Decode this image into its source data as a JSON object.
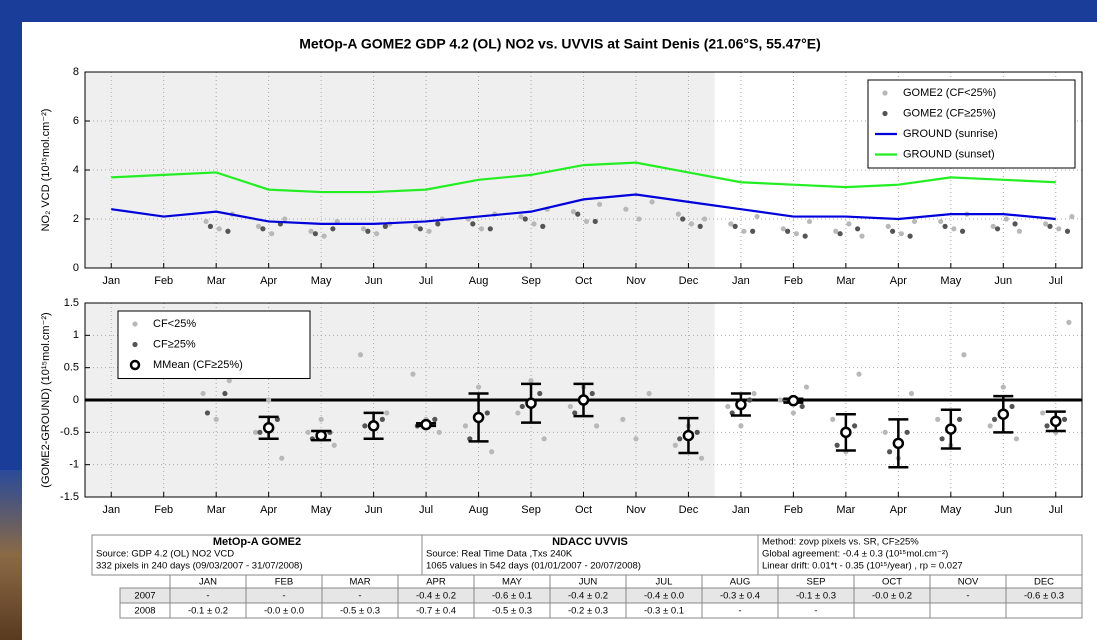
{
  "title": "MetOp-A GOME2  GDP 4.2 (OL) NO2 vs.  UVVIS at Saint Denis (21.06°S,  55.47°E)",
  "chart_data": [
    {
      "type": "line",
      "ylabel": "NO₂ VCD (10¹⁵mol.cm⁻²)",
      "categories": [
        "Jan",
        "Feb",
        "Mar",
        "Apr",
        "May",
        "Jun",
        "Jul",
        "Aug",
        "Sep",
        "Oct",
        "Nov",
        "Dec",
        "Jan",
        "Feb",
        "Mar",
        "Apr",
        "May",
        "Jun",
        "Jul"
      ],
      "ylim": [
        0,
        8
      ],
      "yticks": [
        0,
        2,
        4,
        6,
        8
      ],
      "grid": true,
      "legend": "upper right",
      "series": [
        {
          "name": "GOME2 (CF<25%)",
          "type": "scatter",
          "color": "#b8b8b8",
          "values": [
            null,
            null,
            [
              1.9,
              1.6,
              2.2
            ],
            [
              1.7,
              1.4,
              2.0
            ],
            [
              1.5,
              1.3,
              1.9
            ],
            [
              1.6,
              1.4,
              1.8
            ],
            [
              1.7,
              1.5,
              2.0
            ],
            [
              2.0,
              1.6,
              2.2
            ],
            [
              2.1,
              1.8,
              2.4
            ],
            [
              2.3,
              1.9,
              2.6
            ],
            [
              2.4,
              2.0,
              2.7
            ],
            [
              2.2,
              1.8,
              2.0
            ],
            [
              1.8,
              1.5,
              2.1
            ],
            [
              1.6,
              1.4,
              1.9
            ],
            [
              1.5,
              1.8,
              1.3
            ],
            [
              1.7,
              1.4,
              1.9
            ],
            [
              1.9,
              1.6,
              2.2
            ],
            [
              1.7,
              2.0,
              1.5
            ],
            [
              1.8,
              1.6,
              2.1
            ]
          ]
        },
        {
          "name": "GOME2 (CF≥25%)",
          "type": "scatter",
          "color": "#555555",
          "values": [
            null,
            null,
            [
              1.7,
              1.5
            ],
            [
              1.6,
              1.8
            ],
            [
              1.4,
              1.6
            ],
            [
              1.5,
              1.7
            ],
            [
              1.6,
              1.8
            ],
            [
              1.8,
              1.6
            ],
            [
              2.0,
              1.7
            ],
            [
              2.2,
              1.9
            ],
            null,
            [
              2.0,
              1.7
            ],
            [
              1.7,
              1.5
            ],
            [
              1.5,
              1.3
            ],
            [
              1.4,
              1.6
            ],
            [
              1.5,
              1.3
            ],
            [
              1.7,
              1.5
            ],
            [
              1.6,
              1.8
            ],
            [
              1.7,
              1.5
            ]
          ]
        },
        {
          "name": "GROUND (sunrise)",
          "type": "line",
          "color": "#0000dd",
          "values": [
            2.4,
            2.1,
            2.3,
            1.9,
            1.8,
            1.8,
            1.9,
            2.1,
            2.3,
            2.8,
            3.0,
            2.7,
            2.4,
            2.1,
            2.1,
            2.0,
            2.2,
            2.2,
            2.0
          ]
        },
        {
          "name": "GROUND (sunset)",
          "type": "line",
          "color": "#22ee22",
          "values": [
            3.7,
            3.8,
            3.9,
            3.2,
            3.1,
            3.1,
            3.2,
            3.6,
            3.8,
            4.2,
            4.3,
            3.9,
            3.5,
            3.4,
            3.3,
            3.4,
            3.7,
            3.6,
            3.5
          ]
        }
      ]
    },
    {
      "type": "errorbar",
      "ylabel": "(GOME2-GROUND) (10¹⁵mol.cm⁻²)",
      "categories": [
        "Jan",
        "Feb",
        "Mar",
        "Apr",
        "May",
        "Jun",
        "Jul",
        "Aug",
        "Sep",
        "Oct",
        "Nov",
        "Dec",
        "Jan",
        "Feb",
        "Mar",
        "Apr",
        "May",
        "Jun",
        "Jul"
      ],
      "ylim": [
        -1.5,
        1.5
      ],
      "yticks": [
        -1.5,
        -1,
        -0.5,
        0,
        0.5,
        1,
        1.5
      ],
      "grid": true,
      "legend": "upper left",
      "series": [
        {
          "name": "CF<25%",
          "type": "scatter",
          "color": "#b8b8b8",
          "values": [
            null,
            null,
            [
              0.1,
              -0.3,
              0.3
            ],
            [
              -0.5,
              0.0,
              -0.9
            ],
            [
              -0.5,
              -0.3,
              -0.7
            ],
            [
              0.7,
              -0.4,
              -0.2
            ],
            [
              0.4,
              -0.3,
              -0.5
            ],
            [
              -0.4,
              0.2,
              -0.8
            ],
            [
              -0.2,
              0.3,
              -0.6
            ],
            [
              -0.1,
              0.2,
              -0.4
            ],
            [
              -0.3,
              -0.6,
              0.1
            ],
            [
              -0.7,
              -0.4,
              -0.9
            ],
            [
              -0.1,
              -0.4,
              0.1
            ],
            [
              0.0,
              -0.2,
              0.2
            ],
            [
              -0.3,
              -0.8,
              0.4
            ],
            [
              -0.5,
              -0.9,
              0.1
            ],
            [
              -0.3,
              -0.7,
              0.7
            ],
            [
              -0.4,
              0.2,
              -0.6
            ],
            [
              -0.2,
              -0.5,
              1.2
            ]
          ]
        },
        {
          "name": "CF≥25%",
          "type": "scatter",
          "color": "#555555",
          "values": [
            null,
            null,
            [
              -0.2,
              0.1
            ],
            [
              -0.5,
              -0.3
            ],
            [
              -0.6,
              -0.5
            ],
            [
              -0.4,
              -0.3
            ],
            [
              -0.4,
              -0.3
            ],
            [
              -0.6,
              -0.2
            ],
            [
              -0.1,
              0.1
            ],
            [
              -0.2,
              0.1
            ],
            null,
            [
              -0.6,
              -0.5
            ],
            [
              -0.2,
              0.0
            ],
            [
              0.0,
              -0.1
            ],
            [
              -0.7,
              -0.4
            ],
            [
              -0.8,
              -0.5
            ],
            [
              -0.6,
              -0.3
            ],
            [
              -0.3,
              -0.1
            ],
            [
              -0.4,
              -0.3
            ]
          ]
        },
        {
          "name": "MMean (CF≥25%)",
          "type": "errorbar",
          "color": "#000000",
          "values": [
            null,
            null,
            null,
            -0.43,
            -0.55,
            -0.4,
            -0.38,
            -0.27,
            -0.05,
            0.0,
            null,
            -0.55,
            -0.07,
            -0.01,
            -0.5,
            -0.67,
            -0.45,
            -0.22,
            -0.33
          ],
          "errors": [
            null,
            null,
            null,
            0.17,
            0.07,
            0.2,
            0.02,
            0.37,
            0.3,
            0.25,
            null,
            0.27,
            0.17,
            0.03,
            0.28,
            0.37,
            0.3,
            0.28,
            0.15
          ]
        }
      ]
    }
  ],
  "table": {
    "groups": [
      {
        "title": "MetOp-A GOME2",
        "lines": [
          "Source: GDP 4.2 (OL) NO2 VCD",
          "332 pixels in 240 days (09/03/2007 - 31/07/2008)"
        ]
      },
      {
        "title": "NDACC UVVIS",
        "lines": [
          "Source: Real Time Data ,Txs 240K",
          "1065 values in 542 days (01/01/2007 - 20/07/2008)"
        ]
      },
      {
        "title": null,
        "lines": [
          "Method: zovp pixels vs. SR, CF≥25%",
          "Global agreement: -0.4 ± 0.3 (10¹⁵mol.cm⁻²)",
          "Linear drift: 0.01*t - 0.35 (10¹⁵/year) , rp = 0.027"
        ]
      }
    ],
    "months": [
      "JAN",
      "FEB",
      "MAR",
      "APR",
      "MAY",
      "JUN",
      "JUL",
      "AUG",
      "SEP",
      "OCT",
      "NOV",
      "DEC"
    ],
    "rows": [
      {
        "year": "2007",
        "cells": [
          "-",
          "-",
          "-",
          "-0.4 ± 0.2",
          "-0.6 ± 0.1",
          "-0.4 ± 0.2",
          "-0.4 ± 0.0",
          "-0.3 ± 0.4",
          "-0.1 ± 0.3",
          "-0.0 ± 0.2",
          "-",
          "-0.6 ± 0.3"
        ]
      },
      {
        "year": "2008",
        "cells": [
          "-0.1 ± 0.2",
          "-0.0 ± 0.0",
          "-0.5 ± 0.3",
          "-0.7 ± 0.4",
          "-0.5 ± 0.3",
          "-0.2 ± 0.3",
          "-0.3 ± 0.1",
          "-",
          "-",
          null,
          null,
          null
        ]
      }
    ]
  }
}
